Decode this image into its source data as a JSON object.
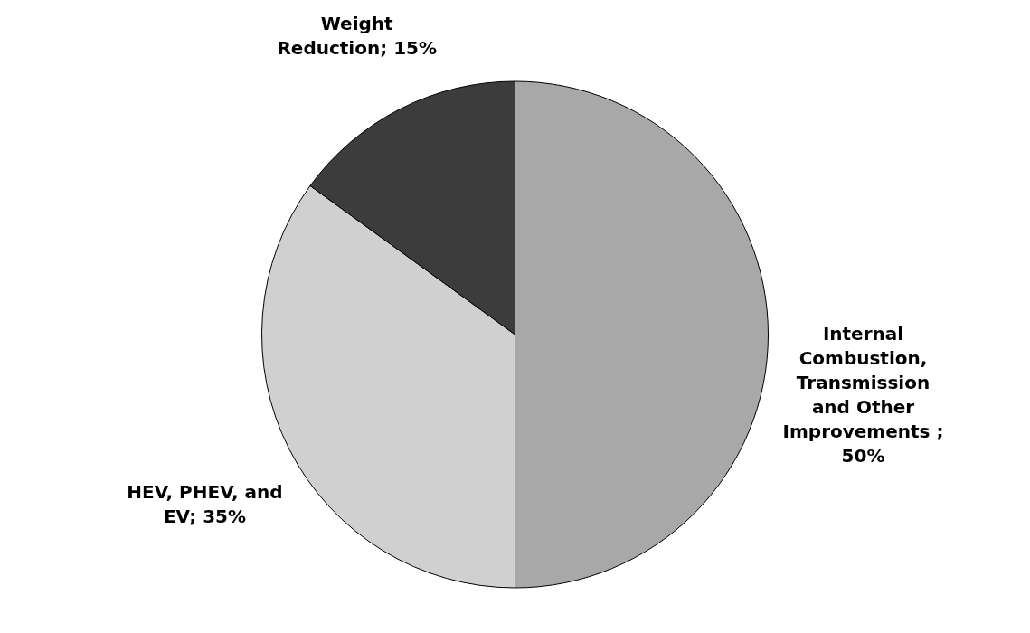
{
  "chart_data": {
    "type": "pie",
    "categories": [
      "Internal Combustion, Transmission and Other Improvements",
      "HEV, PHEV, and EV",
      "Weight Reduction"
    ],
    "values": [
      50,
      35,
      15
    ],
    "value_labels": [
      " ; 50%",
      "; 35%",
      "; 15%"
    ],
    "colors": [
      "#a8a8a8",
      "#d0d0d0",
      "#3c3c3c"
    ],
    "legend": false
  }
}
